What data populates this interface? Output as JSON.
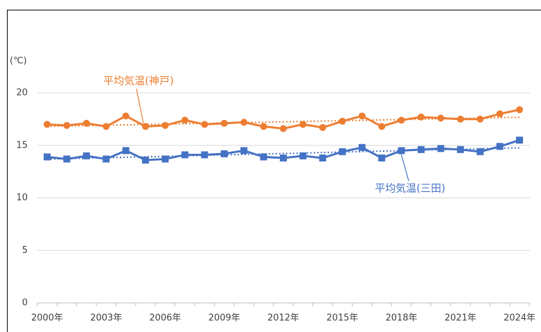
{
  "chart_data": {
    "type": "line",
    "y_axis_label": "(℃)",
    "categories": [
      "2000年",
      null,
      null,
      "2003年",
      null,
      null,
      "2006年",
      null,
      null,
      "2009年",
      null,
      null,
      "2012年",
      null,
      null,
      "2015年",
      null,
      null,
      "2018年",
      null,
      null,
      "2021年",
      null,
      null,
      "2024年"
    ],
    "series": [
      {
        "name": "平均気温(神戸)",
        "color": "#ed7d31",
        "marker": "circle",
        "values": [
          17.0,
          16.9,
          17.1,
          16.8,
          17.8,
          16.8,
          16.9,
          17.4,
          17.0,
          17.1,
          17.2,
          16.8,
          16.6,
          17.0,
          16.7,
          17.3,
          17.8,
          16.8,
          17.4,
          17.7,
          17.6,
          17.5,
          17.5,
          18.0,
          18.4
        ]
      },
      {
        "name": "平均気温(三田)",
        "color": "#4472c4",
        "marker": "square",
        "values": [
          13.9,
          13.7,
          14.0,
          13.7,
          14.5,
          13.6,
          13.7,
          14.1,
          14.1,
          14.2,
          14.5,
          13.9,
          13.8,
          14.0,
          13.8,
          14.4,
          14.8,
          13.8,
          14.5,
          14.6,
          14.7,
          14.6,
          14.4,
          14.9,
          15.5
        ]
      }
    ],
    "trendline": true,
    "ylim": [
      0,
      20
    ],
    "yticks": [
      0,
      5,
      10,
      15,
      20
    ],
    "grid": true
  }
}
